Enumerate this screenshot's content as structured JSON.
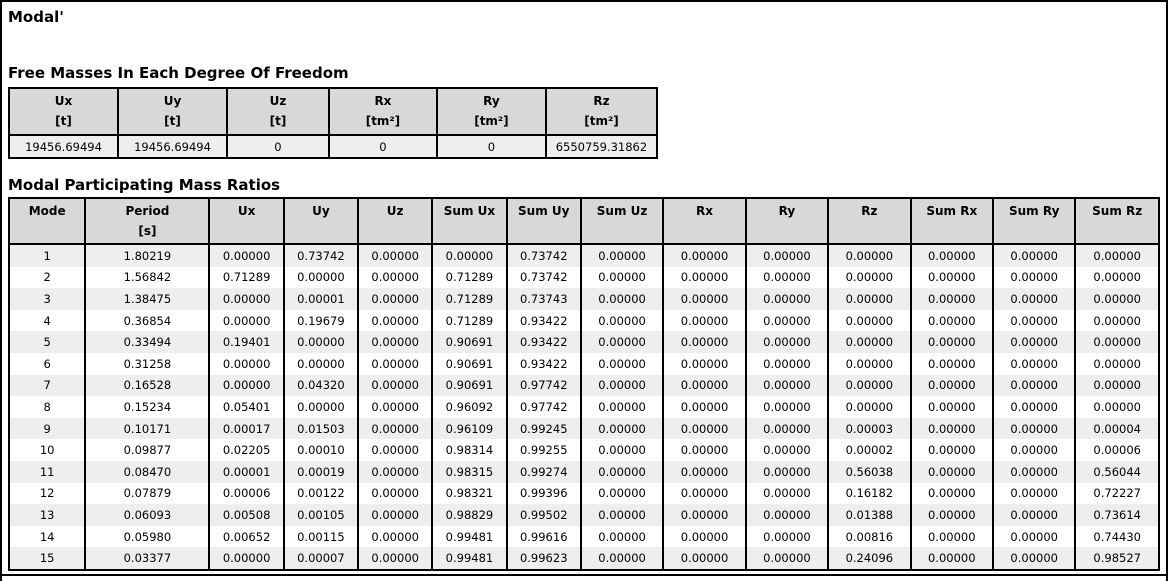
{
  "page": {
    "title": "Modal'"
  },
  "free_masses": {
    "heading": "Free Masses In Each Degree Of Freedom",
    "columns": [
      "Ux",
      "Uy",
      "Uz",
      "Rx",
      "Ry",
      "Rz"
    ],
    "units": [
      "[t]",
      "[t]",
      "[t]",
      "[tm²]",
      "[tm²]",
      "[tm²]"
    ],
    "values": [
      "19456.69494",
      "19456.69494",
      "0",
      "0",
      "0",
      "6550759.31862"
    ]
  },
  "modal_ratios": {
    "heading": "Modal Participating Mass Ratios",
    "columns": [
      "Mode",
      "Period",
      "Ux",
      "Uy",
      "Uz",
      "Sum Ux",
      "Sum Uy",
      "Sum Uz",
      "Rx",
      "Ry",
      "Rz",
      "Sum Rx",
      "Sum Ry",
      "Sum Rz"
    ],
    "units": [
      "",
      "[s]",
      "",
      "",
      "",
      "",
      "",
      "",
      "",
      "",
      "",
      "",
      "",
      ""
    ],
    "rows": [
      [
        "1",
        "1.80219",
        "0.00000",
        "0.73742",
        "0.00000",
        "0.00000",
        "0.73742",
        "0.00000",
        "0.00000",
        "0.00000",
        "0.00000",
        "0.00000",
        "0.00000",
        "0.00000"
      ],
      [
        "2",
        "1.56842",
        "0.71289",
        "0.00000",
        "0.00000",
        "0.71289",
        "0.73742",
        "0.00000",
        "0.00000",
        "0.00000",
        "0.00000",
        "0.00000",
        "0.00000",
        "0.00000"
      ],
      [
        "3",
        "1.38475",
        "0.00000",
        "0.00001",
        "0.00000",
        "0.71289",
        "0.73743",
        "0.00000",
        "0.00000",
        "0.00000",
        "0.00000",
        "0.00000",
        "0.00000",
        "0.00000"
      ],
      [
        "4",
        "0.36854",
        "0.00000",
        "0.19679",
        "0.00000",
        "0.71289",
        "0.93422",
        "0.00000",
        "0.00000",
        "0.00000",
        "0.00000",
        "0.00000",
        "0.00000",
        "0.00000"
      ],
      [
        "5",
        "0.33494",
        "0.19401",
        "0.00000",
        "0.00000",
        "0.90691",
        "0.93422",
        "0.00000",
        "0.00000",
        "0.00000",
        "0.00000",
        "0.00000",
        "0.00000",
        "0.00000"
      ],
      [
        "6",
        "0.31258",
        "0.00000",
        "0.00000",
        "0.00000",
        "0.90691",
        "0.93422",
        "0.00000",
        "0.00000",
        "0.00000",
        "0.00000",
        "0.00000",
        "0.00000",
        "0.00000"
      ],
      [
        "7",
        "0.16528",
        "0.00000",
        "0.04320",
        "0.00000",
        "0.90691",
        "0.97742",
        "0.00000",
        "0.00000",
        "0.00000",
        "0.00000",
        "0.00000",
        "0.00000",
        "0.00000"
      ],
      [
        "8",
        "0.15234",
        "0.05401",
        "0.00000",
        "0.00000",
        "0.96092",
        "0.97742",
        "0.00000",
        "0.00000",
        "0.00000",
        "0.00000",
        "0.00000",
        "0.00000",
        "0.00000"
      ],
      [
        "9",
        "0.10171",
        "0.00017",
        "0.01503",
        "0.00000",
        "0.96109",
        "0.99245",
        "0.00000",
        "0.00000",
        "0.00000",
        "0.00003",
        "0.00000",
        "0.00000",
        "0.00004"
      ],
      [
        "10",
        "0.09877",
        "0.02205",
        "0.00010",
        "0.00000",
        "0.98314",
        "0.99255",
        "0.00000",
        "0.00000",
        "0.00000",
        "0.00002",
        "0.00000",
        "0.00000",
        "0.00006"
      ],
      [
        "11",
        "0.08470",
        "0.00001",
        "0.00019",
        "0.00000",
        "0.98315",
        "0.99274",
        "0.00000",
        "0.00000",
        "0.00000",
        "0.56038",
        "0.00000",
        "0.00000",
        "0.56044"
      ],
      [
        "12",
        "0.07879",
        "0.00006",
        "0.00122",
        "0.00000",
        "0.98321",
        "0.99396",
        "0.00000",
        "0.00000",
        "0.00000",
        "0.16182",
        "0.00000",
        "0.00000",
        "0.72227"
      ],
      [
        "13",
        "0.06093",
        "0.00508",
        "0.00105",
        "0.00000",
        "0.98829",
        "0.99502",
        "0.00000",
        "0.00000",
        "0.00000",
        "0.01388",
        "0.00000",
        "0.00000",
        "0.73614"
      ],
      [
        "14",
        "0.05980",
        "0.00652",
        "0.00115",
        "0.00000",
        "0.99481",
        "0.99616",
        "0.00000",
        "0.00000",
        "0.00000",
        "0.00816",
        "0.00000",
        "0.00000",
        "0.74430"
      ],
      [
        "15",
        "0.03377",
        "0.00000",
        "0.00007",
        "0.00000",
        "0.99481",
        "0.99623",
        "0.00000",
        "0.00000",
        "0.00000",
        "0.24096",
        "0.00000",
        "0.00000",
        "0.98527"
      ]
    ]
  },
  "colors": {
    "border": "#000000",
    "header_bg": "#d8d8d8",
    "row_alt_bg": "#eeeeee"
  }
}
